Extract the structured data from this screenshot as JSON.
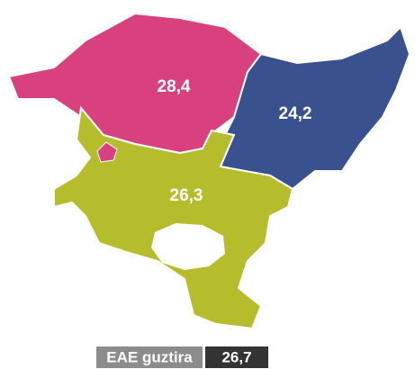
{
  "regions": [
    {
      "label": "28,4",
      "color": "#d9417e"
    },
    {
      "label": "24,2",
      "color": "#3a5190"
    },
    {
      "label": "26,3",
      "color": "#b5bd2c"
    }
  ],
  "total": {
    "label": "EAE guztira",
    "value": "26,7"
  }
}
